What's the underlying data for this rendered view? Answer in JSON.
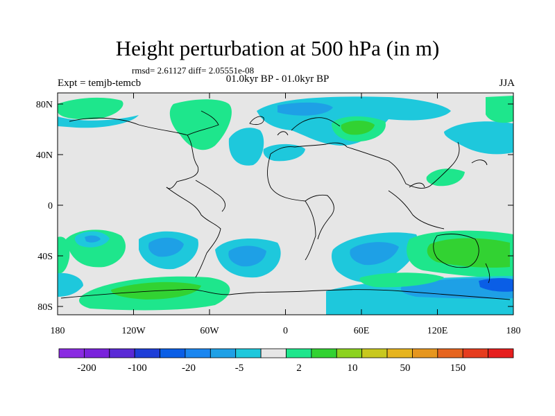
{
  "title": "Height perturbation at 500 hPa (in m)",
  "stats": "rmsd= 2.61127 diff= 2.05551e-08",
  "period": "01.0kyr BP - 01.0kyr BP",
  "experiment": "Expt = temjb-temcb",
  "season": "JJA",
  "lon_ticks": [
    "180",
    "120W",
    "60W",
    "0",
    "60E",
    "120E",
    "180"
  ],
  "lat_ticks": [
    "80N",
    "40N",
    "0",
    "40S",
    "80S"
  ],
  "colorbar_labels": [
    "-200",
    "-100",
    "-20",
    "-5",
    "2",
    "10",
    "50",
    "150"
  ],
  "colorbar_colors": [
    "#8a2be2",
    "#7a22dc",
    "#5a2ad6",
    "#1e3ed8",
    "#0a5ee6",
    "#1a86f0",
    "#1ea0e6",
    "#1ec8dc",
    "#e6e6e6",
    "#1ee68c",
    "#32d232",
    "#8cd21e",
    "#c8c81e",
    "#e6b41e",
    "#e6961e",
    "#e6641e",
    "#e63c1e",
    "#e61e1e"
  ],
  "field_colors": {
    "neg_light": "#1ec8dc",
    "neg_mid": "#1ea0e6",
    "neg_dark": "#0a5ee6",
    "pos_light": "#1ee68c",
    "pos_mid": "#32d232",
    "background": "#e6e6e6"
  }
}
